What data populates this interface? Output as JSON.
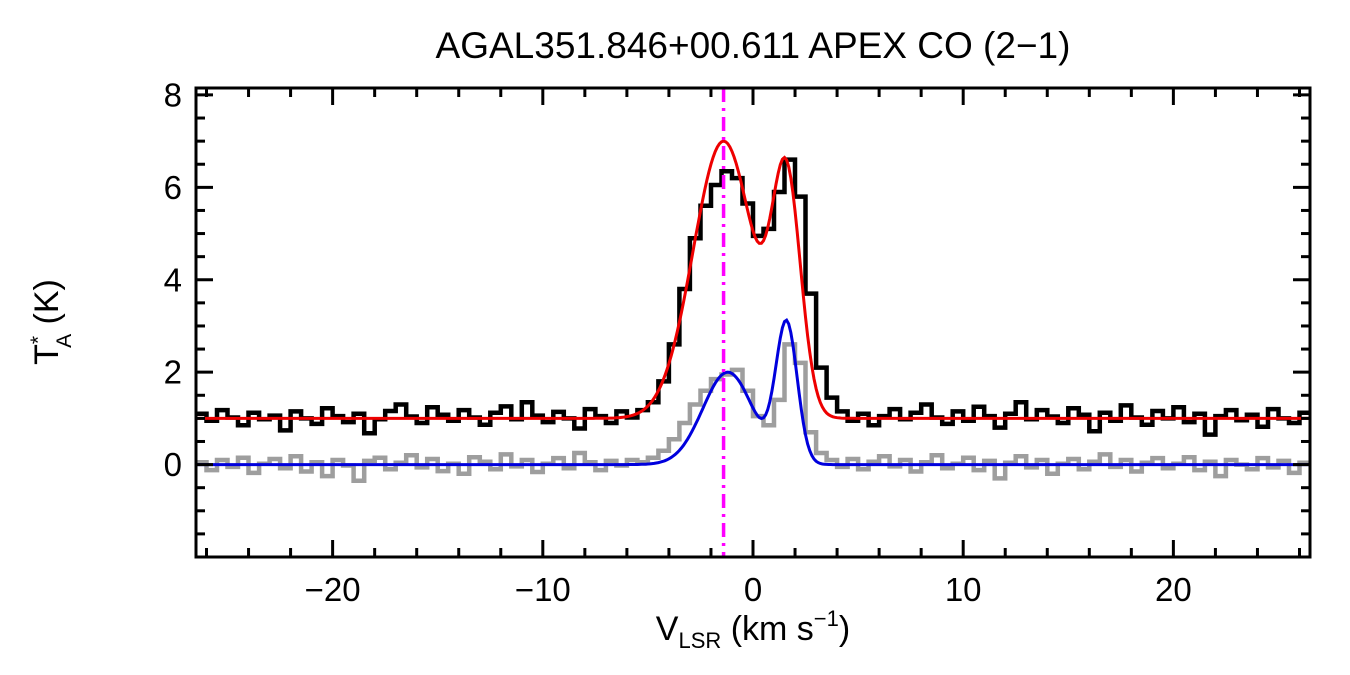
{
  "figure": {
    "background": "#FFFFFF"
  },
  "chart_data": {
    "type": "line",
    "title": "AGAL351.846+00.611  APEX CO (2−1)",
    "xlabel_parts": {
      "v": "V",
      "sub": "LSR",
      "units_pre": " (km s",
      "sup": "−1",
      "units_post": ")"
    },
    "ylabel_parts": {
      "t": "T",
      "sup": "*",
      "sub": "A",
      "units": " (K)"
    },
    "xlim": [
      -26.5,
      26.5
    ],
    "ylim": [
      -2.0,
      8.15
    ],
    "x_major_ticks": [
      -20,
      -10,
      0,
      10,
      20
    ],
    "x_minor_step": 2,
    "y_major_ticks": [
      0,
      2,
      4,
      6,
      8
    ],
    "y_minor_step": 0.5,
    "grid": false,
    "legend": "none",
    "marker_line": {
      "x": -1.4,
      "color": "#FF00FF",
      "style": "dash-dot"
    },
    "bin_width": 0.5,
    "series": [
      {
        "name": "observed-spectrum-offset",
        "color": "#000000",
        "style": "histogram",
        "line_width": 4.5,
        "x_start": -26.5,
        "values": [
          1.1,
          0.95,
          1.18,
          1.02,
          0.85,
          1.12,
          0.98,
          1.06,
          0.74,
          1.15,
          1.0,
          0.88,
          1.22,
          1.05,
          0.92,
          1.1,
          0.68,
          0.98,
          1.16,
          1.3,
          1.04,
          0.9,
          1.24,
          1.08,
          0.95,
          1.18,
          1.02,
          0.86,
          1.12,
          1.26,
          0.98,
          1.35,
          1.06,
          0.92,
          1.14,
          1.0,
          0.78,
          1.2,
          1.05,
          0.9,
          1.15,
          1.02,
          1.18,
          1.35,
          1.8,
          2.6,
          3.8,
          4.9,
          5.6,
          6.05,
          6.35,
          6.2,
          5.65,
          4.95,
          5.1,
          5.9,
          6.6,
          5.8,
          3.7,
          2.1,
          1.45,
          1.15,
          0.95,
          1.1,
          0.85,
          1.05,
          1.2,
          0.98,
          1.12,
          1.3,
          1.02,
          0.88,
          1.15,
          0.95,
          1.25,
          1.05,
          0.8,
          1.1,
          1.35,
          0.98,
          1.18,
          1.04,
          0.9,
          1.22,
          1.08,
          0.72,
          1.12,
          0.95,
          1.28,
          1.02,
          0.86,
          1.16,
          1.0,
          1.24,
          0.92,
          1.1,
          0.65,
          1.05,
          1.18,
          0.96,
          1.08,
          0.82,
          1.2,
          1.0,
          0.9,
          1.12
        ]
      },
      {
        "name": "residual-spectrum",
        "color": "#9E9E9E",
        "style": "histogram",
        "line_width": 4.5,
        "x_start": -26.5,
        "values": [
          0.05,
          -0.12,
          0.1,
          -0.05,
          0.15,
          -0.18,
          0.02,
          0.12,
          -0.08,
          0.18,
          -0.15,
          0.05,
          -0.25,
          0.1,
          -0.02,
          -0.35,
          0.08,
          0.15,
          -0.1,
          0.04,
          0.2,
          -0.06,
          0.12,
          -0.14,
          0.02,
          -0.2,
          0.16,
          0.06,
          -0.1,
          0.22,
          -0.04,
          0.1,
          -0.16,
          0.02,
          0.14,
          -0.08,
          0.25,
          0.05,
          -0.12,
          0.08,
          -0.02,
          0.1,
          0.05,
          0.15,
          0.3,
          0.55,
          0.9,
          1.3,
          1.6,
          1.85,
          1.95,
          2.05,
          1.6,
          1.05,
          0.85,
          1.4,
          2.6,
          2.2,
          0.7,
          0.25,
          0.1,
          -0.05,
          0.12,
          -0.1,
          0.06,
          0.18,
          -0.04,
          0.1,
          -0.15,
          0.05,
          0.2,
          -0.08,
          0.02,
          0.15,
          -0.12,
          0.08,
          -0.3,
          0.04,
          0.18,
          -0.06,
          0.1,
          -0.2,
          0.02,
          0.12,
          -0.1,
          0.06,
          0.22,
          -0.05,
          0.1,
          -0.15,
          0.04,
          0.14,
          -0.08,
          0.02,
          0.16,
          -0.12,
          0.06,
          -0.25,
          0.1,
          0.0,
          -0.1,
          0.14,
          -0.06,
          0.08,
          -0.18,
          0.04
        ]
      },
      {
        "name": "model-fit-offset",
        "color": "#EE0000",
        "style": "curve",
        "line_width": 3,
        "baseline": 1.0,
        "components": [
          {
            "center": -1.4,
            "amplitude": 6.0,
            "fwhm": 3.4
          },
          {
            "center": 1.6,
            "amplitude": 4.9,
            "fwhm": 1.6
          }
        ]
      },
      {
        "name": "model-fit",
        "color": "#0000DD",
        "style": "curve",
        "line_width": 3,
        "baseline": 0.0,
        "components": [
          {
            "center": -1.2,
            "amplitude": 2.0,
            "fwhm": 2.8
          },
          {
            "center": 1.6,
            "amplitude": 3.0,
            "fwhm": 1.2
          }
        ]
      }
    ]
  }
}
